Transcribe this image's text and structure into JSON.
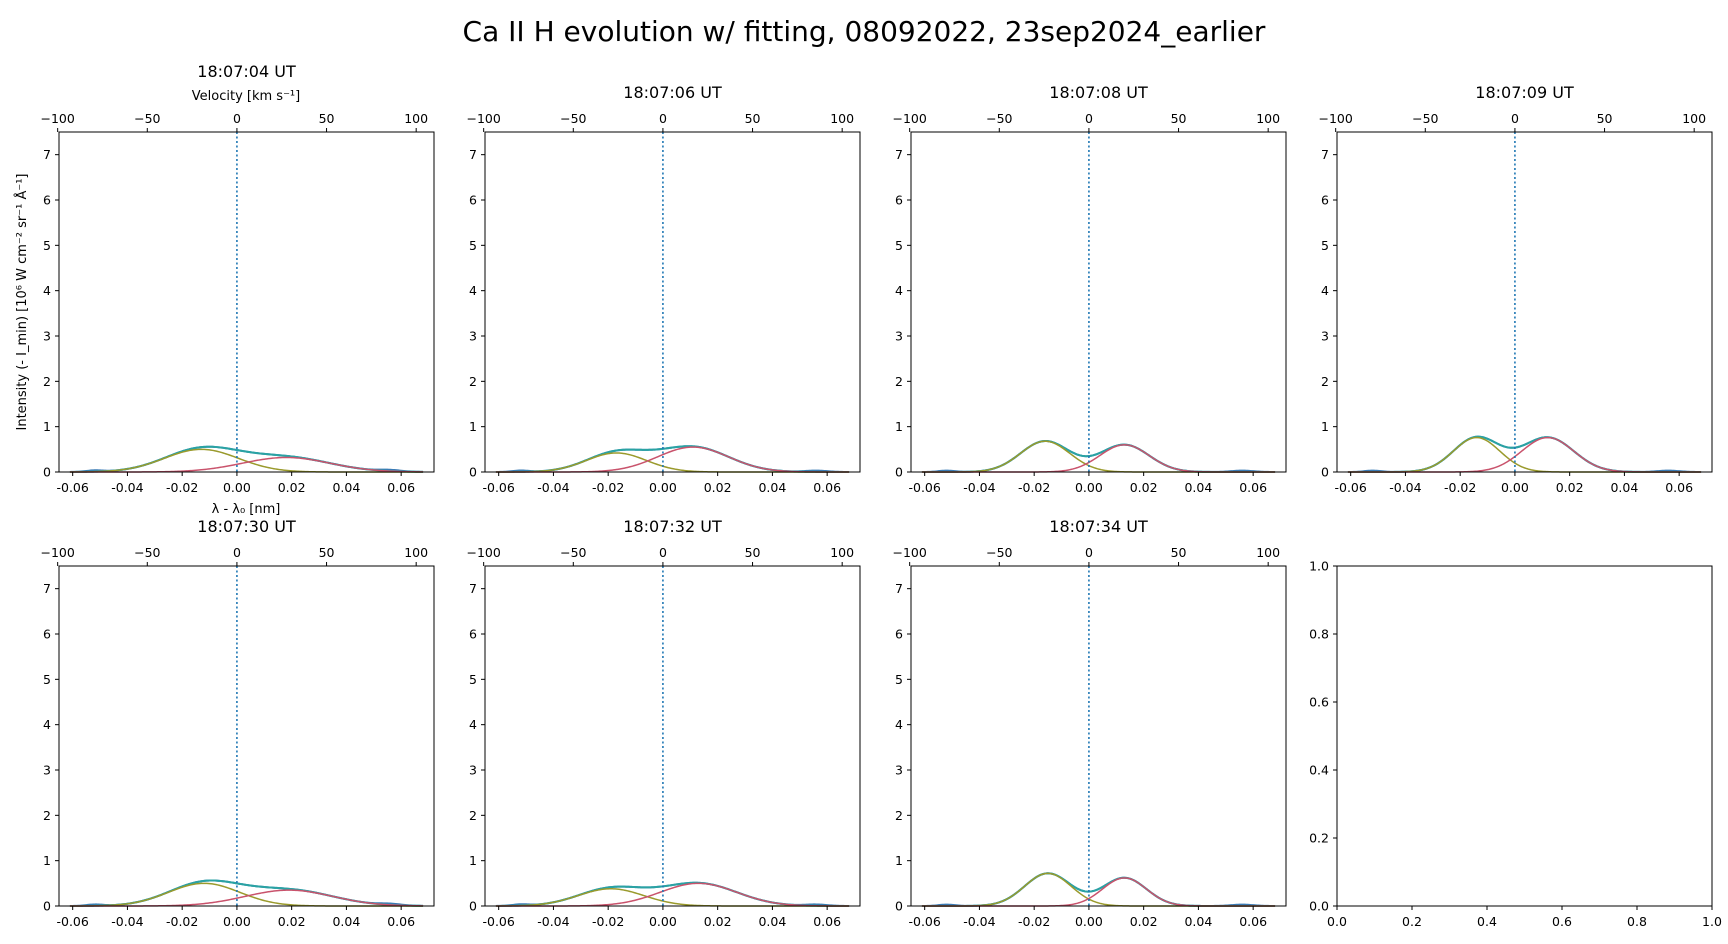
{
  "figure": {
    "suptitle": "Ca II H evolution w/ fitting, 08092022, 23sep2024_earlier",
    "top_axis_label": "Velocity [km s⁻¹]",
    "bottom_axis_label": "λ - λ₀ [nm]",
    "y_axis_label": "Intensity (- I_min) [10⁶ W cm⁻² sr⁻¹ Å⁻¹]",
    "colors": {
      "observed": "#3a7bb5",
      "total_fit": "#2aa3a3",
      "blue_component": "#9a9a2c",
      "red_component": "#c9536c",
      "zero_line": "#1f77b4",
      "axes": "#000000"
    }
  },
  "chart_data": [
    {
      "type": "line",
      "title": "18:07:04 UT",
      "xlim": [
        -0.065,
        0.072
      ],
      "ylim": [
        0,
        7.5
      ],
      "x_ticks": [
        -0.06,
        -0.04,
        -0.02,
        0.0,
        0.02,
        0.04,
        0.06
      ],
      "x_tick_labels": [
        "-0.06",
        "-0.04",
        "-0.02",
        "0.00",
        "0.02",
        "0.04",
        "0.06"
      ],
      "y_ticks": [
        0,
        1,
        2,
        3,
        4,
        5,
        6,
        7
      ],
      "y_tick_labels": [
        "0",
        "1",
        "2",
        "3",
        "4",
        "5",
        "6",
        "7"
      ],
      "top_ticks": [
        -100,
        -50,
        0,
        50,
        100
      ],
      "zero_line": 0.0,
      "series": [
        {
          "role": "blue_component",
          "amplitude": 0.5,
          "center": -0.013,
          "width": 0.0135
        },
        {
          "role": "red_component",
          "amplitude": 0.32,
          "center": 0.018,
          "width": 0.016
        }
      ]
    },
    {
      "type": "line",
      "title": "18:07:06 UT",
      "xlim": [
        -0.065,
        0.072
      ],
      "ylim": [
        0,
        7.5
      ],
      "x_ticks": [
        -0.06,
        -0.04,
        -0.02,
        0.0,
        0.02,
        0.04,
        0.06
      ],
      "x_tick_labels": [
        "-0.06",
        "-0.04",
        "-0.02",
        "0.00",
        "0.02",
        "0.04",
        "0.06"
      ],
      "y_ticks": [
        0,
        1,
        2,
        3,
        4,
        5,
        6,
        7
      ],
      "y_tick_labels": [
        "0",
        "1",
        "2",
        "3",
        "4",
        "5",
        "6",
        "7"
      ],
      "top_ticks": [
        -100,
        -50,
        0,
        50,
        100
      ],
      "zero_line": 0.0,
      "series": [
        {
          "role": "blue_component",
          "amplitude": 0.42,
          "center": -0.017,
          "width": 0.011
        },
        {
          "role": "red_component",
          "amplitude": 0.55,
          "center": 0.011,
          "width": 0.013
        }
      ]
    },
    {
      "type": "line",
      "title": "18:07:08 UT",
      "xlim": [
        -0.065,
        0.072
      ],
      "ylim": [
        0,
        7.5
      ],
      "x_ticks": [
        -0.06,
        -0.04,
        -0.02,
        0.0,
        0.02,
        0.04,
        0.06
      ],
      "x_tick_labels": [
        "-0.06",
        "-0.04",
        "-0.02",
        "0.00",
        "0.02",
        "0.04",
        "0.06"
      ],
      "y_ticks": [
        0,
        1,
        2,
        3,
        4,
        5,
        6,
        7
      ],
      "y_tick_labels": [
        "0",
        "1",
        "2",
        "3",
        "4",
        "5",
        "6",
        "7"
      ],
      "top_ticks": [
        -100,
        -50,
        0,
        50,
        100
      ],
      "zero_line": 0.0,
      "series": [
        {
          "role": "blue_component",
          "amplitude": 0.68,
          "center": -0.016,
          "width": 0.009
        },
        {
          "role": "red_component",
          "amplitude": 0.6,
          "center": 0.013,
          "width": 0.009
        }
      ]
    },
    {
      "type": "line",
      "title": "18:07:09 UT",
      "xlim": [
        -0.065,
        0.072
      ],
      "ylim": [
        0,
        7.5
      ],
      "x_ticks": [
        -0.06,
        -0.04,
        -0.02,
        0.0,
        0.02,
        0.04,
        0.06
      ],
      "x_tick_labels": [
        "-0.06",
        "-0.04",
        "-0.02",
        "0.00",
        "0.02",
        "0.04",
        "0.06"
      ],
      "y_ticks": [
        0,
        1,
        2,
        3,
        4,
        5,
        6,
        7
      ],
      "y_tick_labels": [
        "0",
        "1",
        "2",
        "3",
        "4",
        "5",
        "6",
        "7"
      ],
      "top_ticks": [
        -100,
        -50,
        0,
        50,
        100
      ],
      "zero_line": 0.0,
      "series": [
        {
          "role": "blue_component",
          "amplitude": 0.76,
          "center": -0.014,
          "width": 0.0085
        },
        {
          "role": "red_component",
          "amplitude": 0.76,
          "center": 0.012,
          "width": 0.0095
        }
      ]
    },
    {
      "type": "line",
      "title": "18:07:30 UT",
      "xlim": [
        -0.065,
        0.072
      ],
      "ylim": [
        0,
        7.5
      ],
      "x_ticks": [
        -0.06,
        -0.04,
        -0.02,
        0.0,
        0.02,
        0.04,
        0.06
      ],
      "x_tick_labels": [
        "-0.06",
        "-0.04",
        "-0.02",
        "0.00",
        "0.02",
        "0.04",
        "0.06"
      ],
      "y_ticks": [
        0,
        1,
        2,
        3,
        4,
        5,
        6,
        7
      ],
      "y_tick_labels": [
        "0",
        "1",
        "2",
        "3",
        "4",
        "5",
        "6",
        "7"
      ],
      "top_ticks": [
        -100,
        -50,
        0,
        50,
        100
      ],
      "zero_line": 0.0,
      "series": [
        {
          "role": "blue_component",
          "amplitude": 0.5,
          "center": -0.012,
          "width": 0.013
        },
        {
          "role": "red_component",
          "amplitude": 0.35,
          "center": 0.019,
          "width": 0.016
        }
      ]
    },
    {
      "type": "line",
      "title": "18:07:32 UT",
      "xlim": [
        -0.065,
        0.072
      ],
      "ylim": [
        0,
        7.5
      ],
      "x_ticks": [
        -0.06,
        -0.04,
        -0.02,
        0.0,
        0.02,
        0.04,
        0.06
      ],
      "x_tick_labels": [
        "-0.06",
        "-0.04",
        "-0.02",
        "0.00",
        "0.02",
        "0.04",
        "0.06"
      ],
      "y_ticks": [
        0,
        1,
        2,
        3,
        4,
        5,
        6,
        7
      ],
      "y_tick_labels": [
        "0",
        "1",
        "2",
        "3",
        "4",
        "5",
        "6",
        "7"
      ],
      "top_ticks": [
        -100,
        -50,
        0,
        50,
        100
      ],
      "zero_line": 0.0,
      "series": [
        {
          "role": "blue_component",
          "amplitude": 0.38,
          "center": -0.019,
          "width": 0.012
        },
        {
          "role": "red_component",
          "amplitude": 0.5,
          "center": 0.013,
          "width": 0.014
        }
      ]
    },
    {
      "type": "line",
      "title": "18:07:34 UT",
      "xlim": [
        -0.065,
        0.072
      ],
      "ylim": [
        0,
        7.5
      ],
      "x_ticks": [
        -0.06,
        -0.04,
        -0.02,
        0.0,
        0.02,
        0.04,
        0.06
      ],
      "x_tick_labels": [
        "-0.06",
        "-0.04",
        "-0.02",
        "0.00",
        "0.02",
        "0.04",
        "0.06"
      ],
      "y_ticks": [
        0,
        1,
        2,
        3,
        4,
        5,
        6,
        7
      ],
      "y_tick_labels": [
        "0",
        "1",
        "2",
        "3",
        "4",
        "5",
        "6",
        "7"
      ],
      "top_ticks": [
        -100,
        -50,
        0,
        50,
        100
      ],
      "zero_line": 0.0,
      "series": [
        {
          "role": "blue_component",
          "amplitude": 0.72,
          "center": -0.015,
          "width": 0.0085
        },
        {
          "role": "red_component",
          "amplitude": 0.62,
          "center": 0.013,
          "width": 0.008
        }
      ]
    },
    {
      "type": "line",
      "title": "",
      "xlim": [
        0,
        1
      ],
      "ylim": [
        0,
        1
      ],
      "x_ticks": [
        0.0,
        0.2,
        0.4,
        0.6,
        0.8,
        1.0
      ],
      "x_tick_labels": [
        "0.0",
        "0.2",
        "0.4",
        "0.6",
        "0.8",
        "1.0"
      ],
      "y_ticks": [
        0.0,
        0.2,
        0.4,
        0.6,
        0.8,
        1.0
      ],
      "y_tick_labels": [
        "0.0",
        "0.2",
        "0.4",
        "0.6",
        "0.8",
        "1.0"
      ],
      "top_ticks": [],
      "series": []
    }
  ]
}
